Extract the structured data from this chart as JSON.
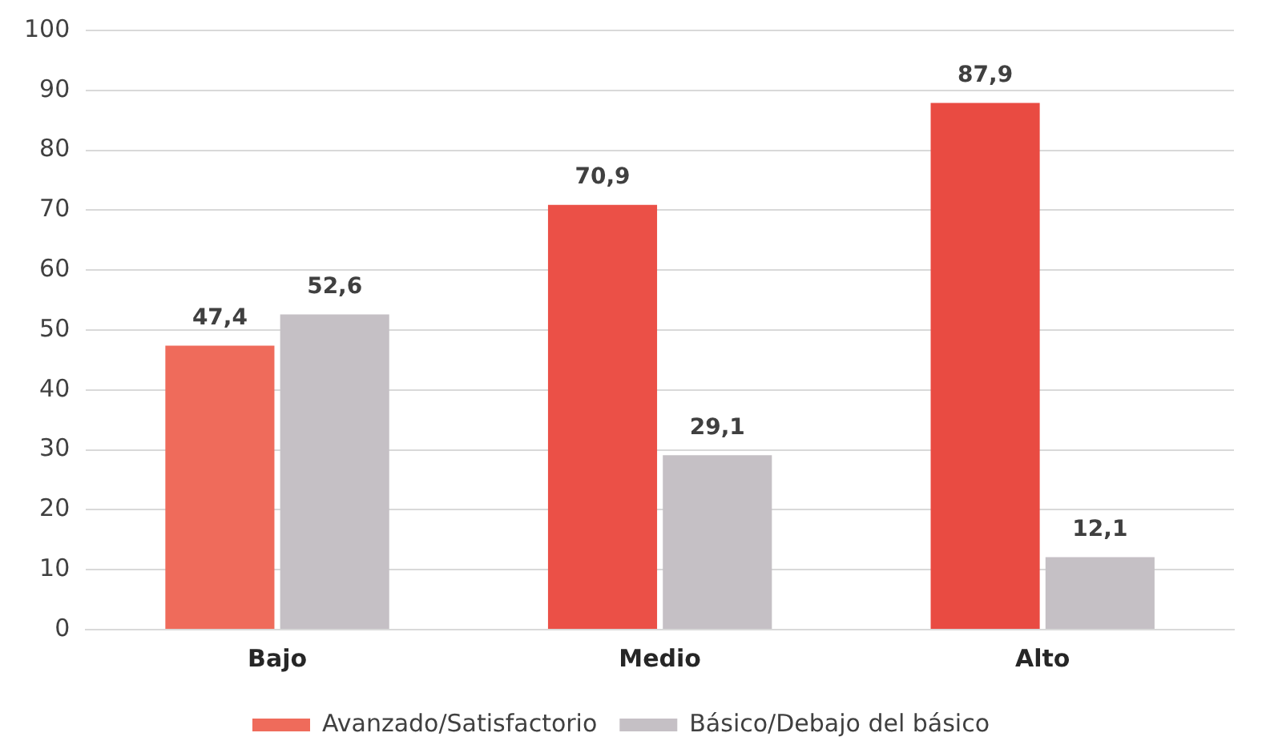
{
  "chart_data": {
    "type": "bar",
    "categories": [
      "Bajo",
      "Medio",
      "Alto"
    ],
    "series": [
      {
        "name": "Avanzado/Satisfactorio",
        "color": "#e94b42",
        "colors": [
          "#ef6b5b",
          "#eb5047",
          "#e94b42"
        ],
        "values": [
          47.4,
          70.9,
          87.9
        ],
        "value_labels": [
          "47,4",
          "70,9",
          "87,9"
        ]
      },
      {
        "name": "Básico/Debajo del básico",
        "color": "#c5c0c5",
        "values": [
          52.6,
          29.1,
          12.1
        ],
        "value_labels": [
          "52,6",
          "29,1",
          "12,1"
        ]
      }
    ],
    "ylim": [
      0,
      100
    ],
    "yticks": [
      0,
      10,
      20,
      30,
      40,
      50,
      60,
      70,
      80,
      90,
      100
    ],
    "grid": "y",
    "legend": "bottom"
  }
}
